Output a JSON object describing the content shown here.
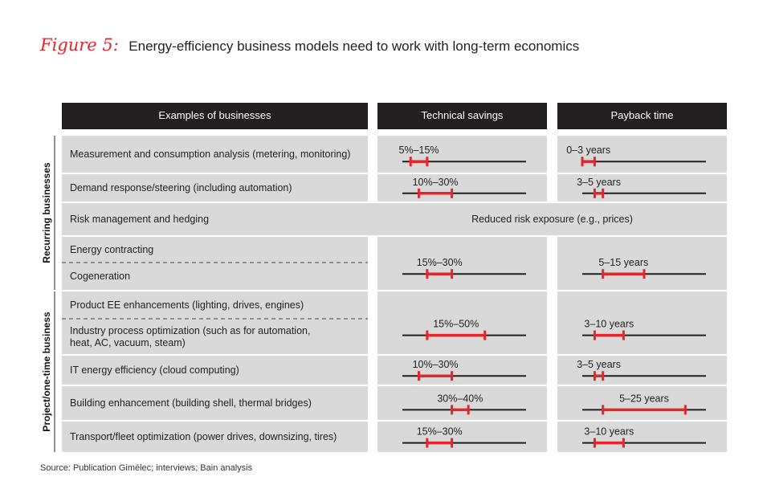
{
  "figure": {
    "label": "Figure 5:",
    "title": "Energy-efficiency business models need to work with long-term economics"
  },
  "source": "Source: Publication Gimélec; interviews; Bain analysis",
  "colors": {
    "accent": "#e3262b",
    "header_bg": "#231f20",
    "row_bg": "#d9d9d9",
    "line": "#231f20"
  },
  "chart_data": {
    "type": "table",
    "columns": [
      "Examples of businesses",
      "Technical savings",
      "Payback time"
    ],
    "groups": [
      {
        "name": "Recurring businesses",
        "rows": [
          0,
          1,
          2,
          3,
          4
        ]
      },
      {
        "name": "Project/one-time business",
        "rows": [
          5,
          6,
          7,
          8,
          9
        ]
      }
    ],
    "savings_axis": [
      0,
      75
    ],
    "payback_axis": [
      0,
      30
    ],
    "rows": [
      {
        "name": "Measurement and consumption analysis (metering, monitoring)",
        "savings": [
          5,
          15
        ],
        "savings_label": "5%–15%",
        "payback": [
          0,
          3
        ],
        "payback_label": "0–3 years"
      },
      {
        "name": "Demand response/steering (including automation)",
        "savings": [
          10,
          30
        ],
        "savings_label": "10%–30%",
        "payback": [
          3,
          5
        ],
        "payback_label": "3–5 years"
      },
      {
        "name": "Risk management and hedging",
        "note": "Reduced risk exposure (e.g., prices)"
      },
      {
        "name": "Energy contracting",
        "savings": [
          15,
          30
        ],
        "savings_label": "15%–30%",
        "payback": [
          5,
          15
        ],
        "payback_label": "5–15 years",
        "shared_with_next": true
      },
      {
        "name": "Cogeneration"
      },
      {
        "name": "Product EE enhancements (lighting, drives, engines)",
        "savings": [
          15,
          50
        ],
        "savings_label": "15%–50%",
        "payback": [
          3,
          10
        ],
        "payback_label": "3–10 years",
        "shared_with_next": true
      },
      {
        "name": "Industry process optimization (such as for automation, heat, AC, vacuum, steam)"
      },
      {
        "name": "IT energy efficiency (cloud computing)",
        "savings": [
          10,
          30
        ],
        "savings_label": "10%–30%",
        "payback": [
          3,
          5
        ],
        "payback_label": "3–5 years"
      },
      {
        "name": "Building enhancement (building shell, thermal bridges)",
        "savings": [
          30,
          40
        ],
        "savings_label": "30%–40%",
        "payback": [
          5,
          25
        ],
        "payback_label": "5–25 years"
      },
      {
        "name": "Transport/fleet optimization (power drives, downsizing, tires)",
        "savings": [
          15,
          30
        ],
        "savings_label": "15%–30%",
        "payback": [
          3,
          10
        ],
        "payback_label": "3–10 years"
      }
    ]
  }
}
